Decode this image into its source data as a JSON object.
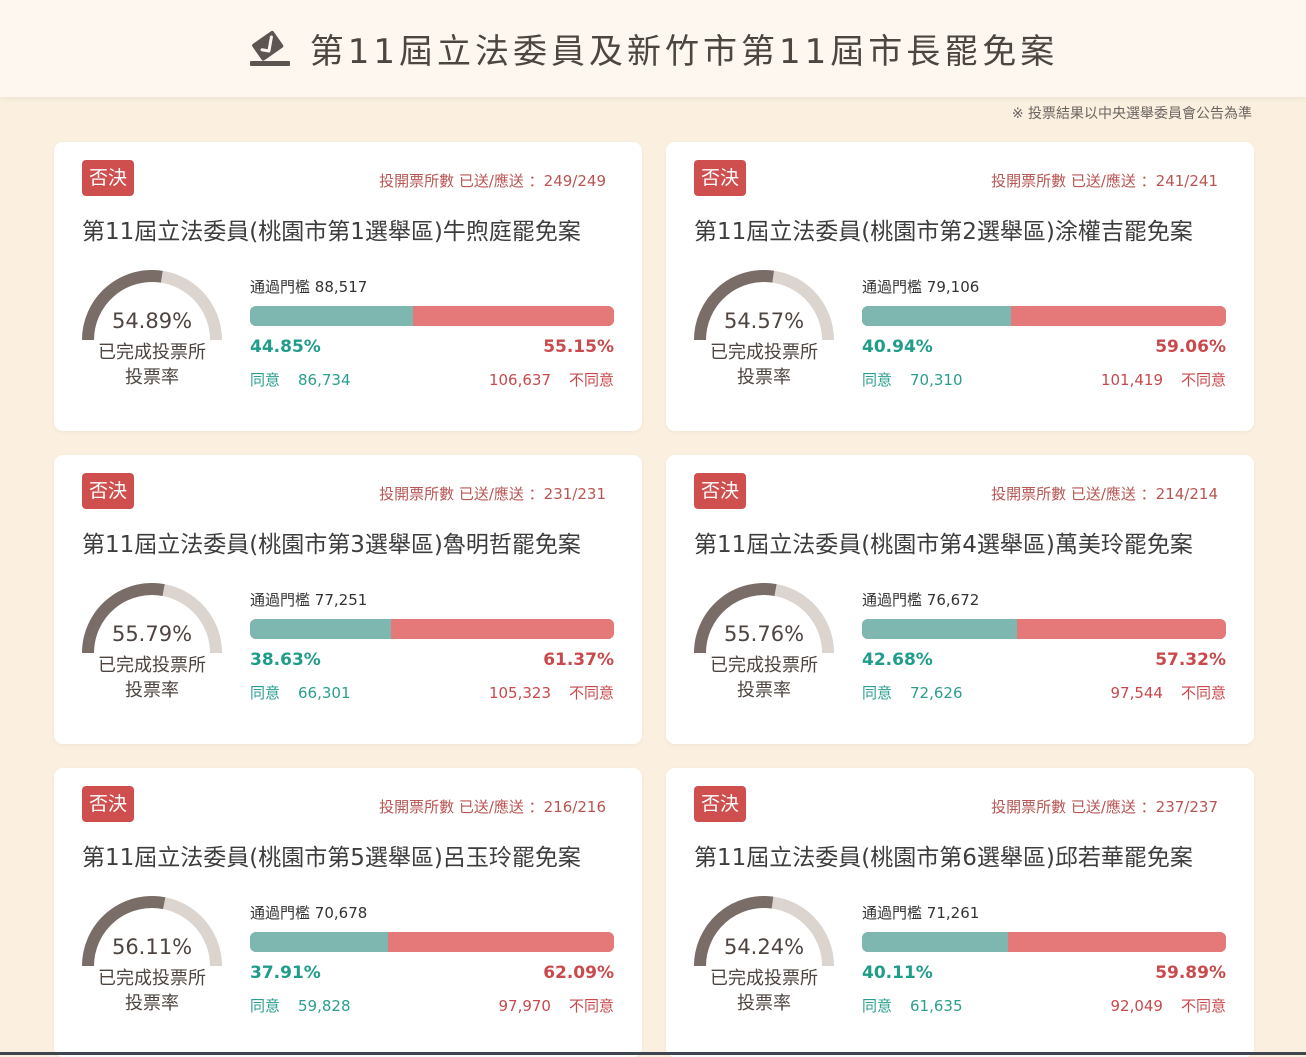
{
  "header": {
    "title": "第11屆立法委員及新竹市第11屆市長罷免案",
    "icon": "ballot-check-icon"
  },
  "note": "※ 投票結果以中央選舉委員會公告為準",
  "labels": {
    "badge": "否決",
    "stations_prefix": "投開票所數 已送/應送 ：",
    "threshold_prefix": "通過門檻",
    "turnout_line1": "已完成投票所",
    "turnout_line2": "投票率",
    "agree": "同意",
    "disagree": "不同意"
  },
  "colors": {
    "agree": "#7eb7b0",
    "disagree": "#e5797a",
    "badge": "#cf4f4f",
    "gauge_fill": "#7a6d68",
    "gauge_track": "#dcd5cf"
  },
  "cards": [
    {
      "title": "第11屆立法委員(桃園市第1選舉區)牛煦庭罷免案",
      "stations": "249/249",
      "turnout": "54.89%",
      "turnout_value": 54.89,
      "threshold": "88,517",
      "agree_pct": "44.85%",
      "agree_value": 44.85,
      "disagree_pct": "55.15%",
      "agree_votes": "86,734",
      "disagree_votes": "106,637"
    },
    {
      "title": "第11屆立法委員(桃園市第2選舉區)涂權吉罷免案",
      "stations": "241/241",
      "turnout": "54.57%",
      "turnout_value": 54.57,
      "threshold": "79,106",
      "agree_pct": "40.94%",
      "agree_value": 40.94,
      "disagree_pct": "59.06%",
      "agree_votes": "70,310",
      "disagree_votes": "101,419"
    },
    {
      "title": "第11屆立法委員(桃園市第3選舉區)魯明哲罷免案",
      "stations": "231/231",
      "turnout": "55.79%",
      "turnout_value": 55.79,
      "threshold": "77,251",
      "agree_pct": "38.63%",
      "agree_value": 38.63,
      "disagree_pct": "61.37%",
      "agree_votes": "66,301",
      "disagree_votes": "105,323"
    },
    {
      "title": "第11屆立法委員(桃園市第4選舉區)萬美玲罷免案",
      "stations": "214/214",
      "turnout": "55.76%",
      "turnout_value": 55.76,
      "threshold": "76,672",
      "agree_pct": "42.68%",
      "agree_value": 42.68,
      "disagree_pct": "57.32%",
      "agree_votes": "72,626",
      "disagree_votes": "97,544"
    },
    {
      "title": "第11屆立法委員(桃園市第5選舉區)呂玉玲罷免案",
      "stations": "216/216",
      "turnout": "56.11%",
      "turnout_value": 56.11,
      "threshold": "70,678",
      "agree_pct": "37.91%",
      "agree_value": 37.91,
      "disagree_pct": "62.09%",
      "agree_votes": "59,828",
      "disagree_votes": "97,970"
    },
    {
      "title": "第11屆立法委員(桃園市第6選舉區)邱若華罷免案",
      "stations": "237/237",
      "turnout": "54.24%",
      "turnout_value": 54.24,
      "threshold": "71,261",
      "agree_pct": "40.11%",
      "agree_value": 40.11,
      "disagree_pct": "59.89%",
      "agree_votes": "61,635",
      "disagree_votes": "92,049"
    }
  ]
}
